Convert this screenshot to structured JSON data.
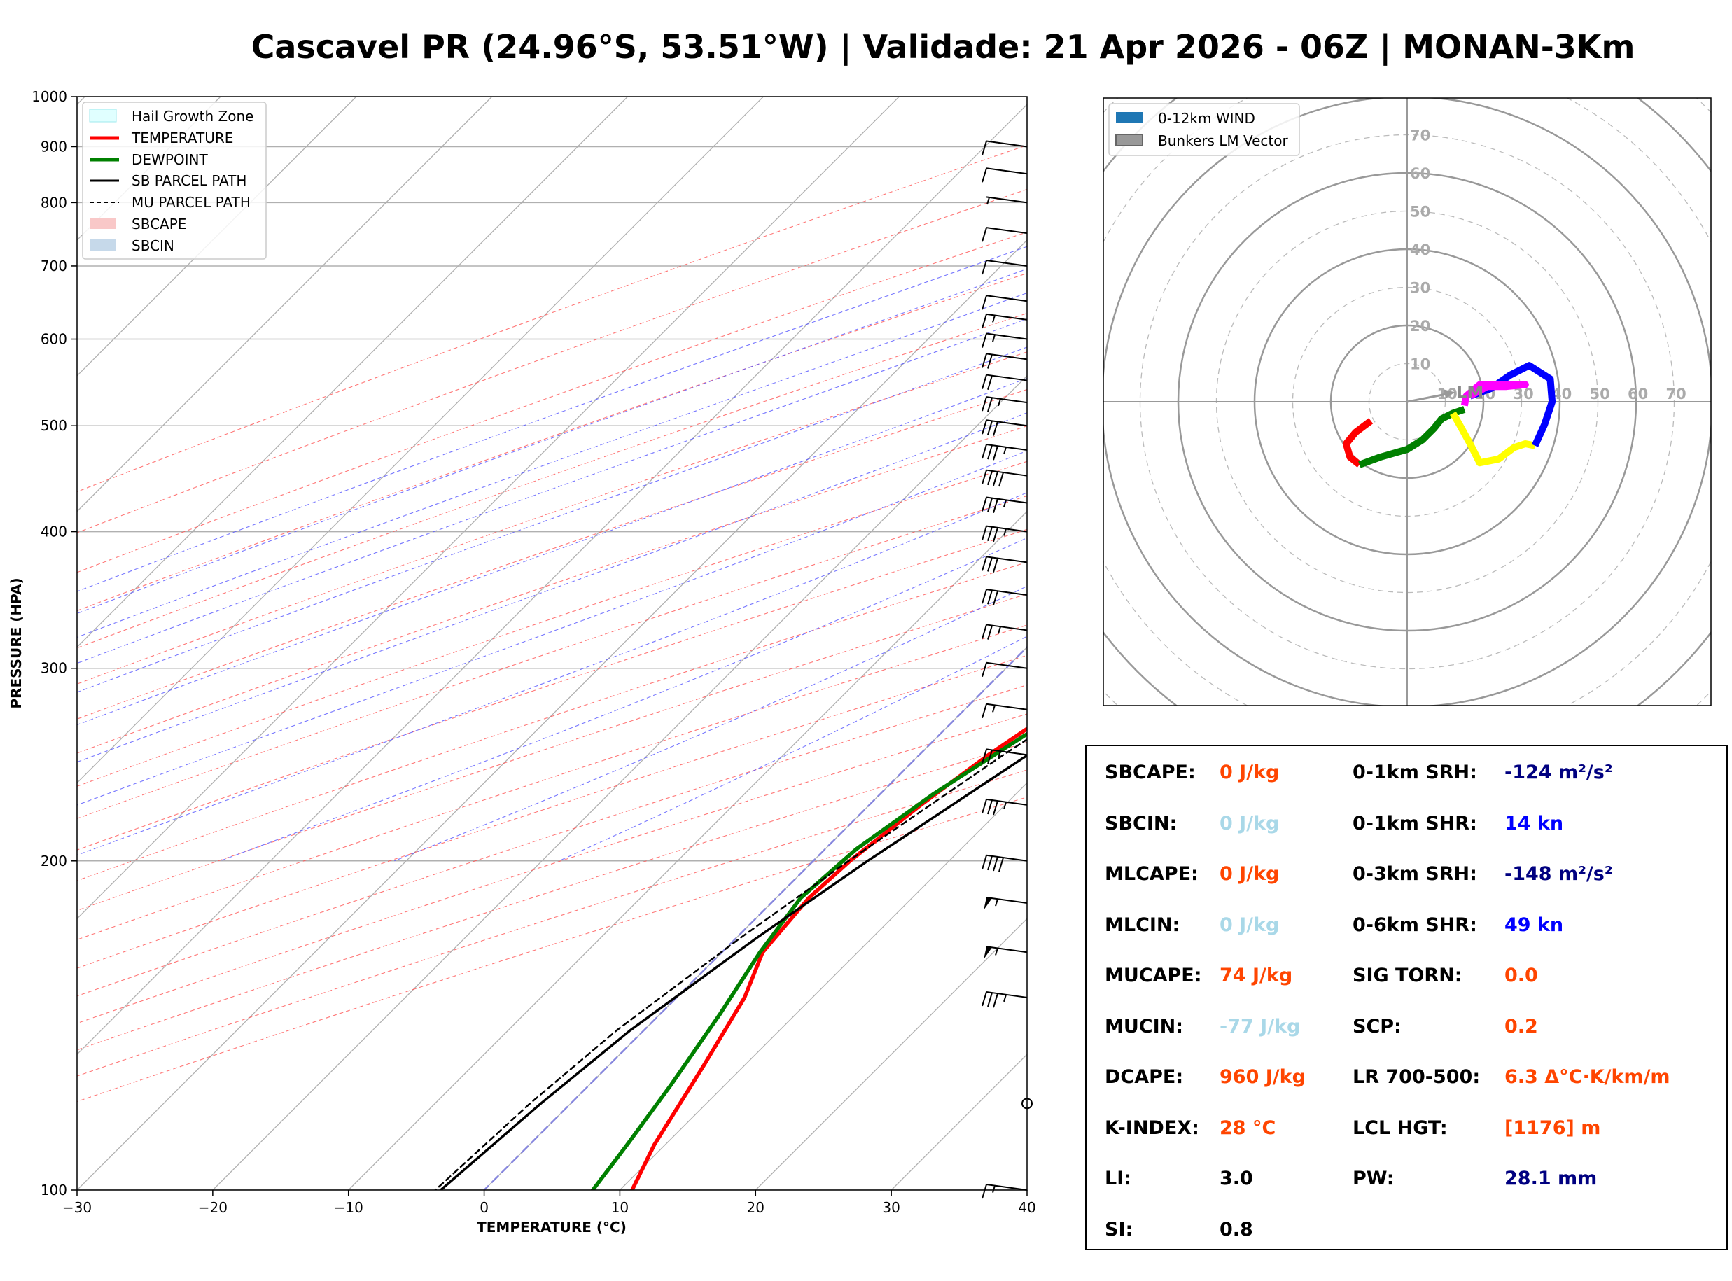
{
  "title": "Cascavel PR (24.96°S, 53.51°W) | Validade: 21 Apr 2026 - 06Z | MONAN-3Km",
  "chart_data": [
    {
      "type": "line",
      "name": "skewt",
      "xlabel": "TEMPERATURE (°C)",
      "ylabel": "PRESSURE (HPA)",
      "xlim": [
        -30,
        40
      ],
      "ylim": [
        1000,
        100
      ],
      "y_scale": "log",
      "x_ticks": [
        -30,
        -20,
        -10,
        0,
        10,
        20,
        30,
        40
      ],
      "x_tick_labels": [
        "−30",
        "−20",
        "−10",
        "0",
        "10",
        "20",
        "30",
        "40"
      ],
      "y_ticks": [
        100,
        200,
        300,
        400,
        500,
        600,
        700,
        800,
        900,
        1000
      ],
      "y_tick_labels": [
        "100",
        "200",
        "300",
        "400",
        "500",
        "600",
        "700",
        "800",
        "900",
        "1000"
      ],
      "legend_position": "top-left",
      "legend": [
        "Hail Growth Zone",
        "TEMPERATURE",
        "DEWPOINT",
        "SB PARCEL PATH",
        "MU PARCEL PATH",
        "SBCAPE",
        "SBCIN"
      ],
      "series": [
        {
          "name": "TEMPERATURE",
          "color": "#ff0000",
          "points": [
            [
              925,
              24.2
            ],
            [
              910,
              27.4
            ],
            [
              890,
              27.3
            ],
            [
              870,
              26.3
            ],
            [
              840,
              25.4
            ],
            [
              810,
              23.0
            ],
            [
              780,
              21.2
            ],
            [
              760,
              20.5
            ],
            [
              730,
              20.5
            ],
            [
              700,
              21.2
            ],
            [
              660,
              21.7
            ],
            [
              630,
              21.4
            ],
            [
              600,
              20.5
            ],
            [
              570,
              19.4
            ],
            [
              540,
              17.3
            ],
            [
              510,
              15.6
            ],
            [
              485,
              14.9
            ],
            [
              470,
              14.6
            ],
            [
              430,
              14.0
            ],
            [
              400,
              13.0
            ],
            [
              370,
              11.8
            ],
            [
              340,
              10.7
            ],
            [
              310,
              8.9
            ],
            [
              280,
              7.0
            ],
            [
              250,
              5.1
            ],
            [
              225,
              3.8
            ],
            [
              200,
              2.7
            ],
            [
              185,
              2.4
            ],
            [
              165,
              3.0
            ],
            [
              150,
              5.0
            ],
            [
              130,
              7.0
            ],
            [
              110,
              9.2
            ],
            [
              100,
              10.9
            ]
          ]
        },
        {
          "name": "DEWPOINT",
          "color": "#008000",
          "points": [
            [
              940,
              15.0
            ],
            [
              920,
              14.6
            ],
            [
              900,
              15.3
            ],
            [
              870,
              15.5
            ],
            [
              850,
              15.5
            ],
            [
              830,
              17.0
            ],
            [
              800,
              18.0
            ],
            [
              780,
              18.5
            ],
            [
              760,
              17.7
            ],
            [
              730,
              14.1
            ],
            [
              700,
              10.5
            ],
            [
              660,
              5.5
            ],
            [
              630,
              3.3
            ],
            [
              600,
              4.8
            ],
            [
              560,
              5.9
            ],
            [
              530,
              7.1
            ],
            [
              500,
              10.4
            ],
            [
              460,
              16.2
            ],
            [
              440,
              16.3
            ],
            [
              420,
              15.6
            ],
            [
              390,
              13.9
            ],
            [
              360,
              12.3
            ],
            [
              320,
              10.8
            ],
            [
              290,
              8.9
            ],
            [
              260,
              6.3
            ],
            [
              230,
              3.9
            ],
            [
              205,
              2.3
            ],
            [
              185,
              1.8
            ],
            [
              165,
              2.8
            ],
            [
              145,
              4.4
            ],
            [
              125,
              6.0
            ],
            [
              110,
              7.2
            ],
            [
              100,
              8.0
            ]
          ]
        },
        {
          "name": "SB PARCEL PATH",
          "color": "#000000",
          "points": [
            [
              925,
              24.2
            ],
            [
              880,
              22.3
            ],
            [
              840,
              20.6
            ],
            [
              810,
              19.3
            ],
            [
              790,
              19.4
            ],
            [
              750,
              19.7
            ],
            [
              700,
              19.8
            ],
            [
              650,
              19.7
            ],
            [
              600,
              19.4
            ],
            [
              550,
              18.8
            ],
            [
              500,
              18.1
            ],
            [
              450,
              17.3
            ],
            [
              400,
              15.9
            ],
            [
              350,
              13.8
            ],
            [
              300,
              11.2
            ],
            [
              250,
              8.0
            ],
            [
              200,
              4.0
            ],
            [
              170,
              1.5
            ],
            [
              140,
              -1.0
            ],
            [
              120,
              -2.2
            ],
            [
              100,
              -3.2
            ]
          ]
        },
        {
          "name": "MU PARCEL PATH",
          "color": "#000000",
          "dash": true,
          "points": [
            [
              810,
              23.0
            ],
            [
              780,
              21.2
            ],
            [
              740,
              21.5
            ],
            [
              700,
              22.0
            ],
            [
              650,
              22.0
            ],
            [
              600,
              21.6
            ],
            [
              550,
              20.8
            ],
            [
              500,
              19.6
            ],
            [
              450,
              17.9
            ],
            [
              400,
              15.8
            ],
            [
              350,
              13.0
            ],
            [
              300,
              9.6
            ],
            [
              250,
              6.2
            ],
            [
              200,
              2.6
            ],
            [
              170,
              0.3
            ],
            [
              140,
              -2.0
            ],
            [
              120,
              -3.0
            ],
            [
              100,
              -3.6
            ]
          ]
        }
      ],
      "hail_growth_zone": {
        "p_top": 465,
        "p_bottom": 565
      },
      "wind_barbs": [
        {
          "p": 100,
          "speed": 15
        },
        {
          "p": 120,
          "speed": 0
        },
        {
          "p": 150,
          "speed": 35
        },
        {
          "p": 165,
          "speed": 55
        },
        {
          "p": 183,
          "speed": 55
        },
        {
          "p": 200,
          "speed": 40
        },
        {
          "p": 225,
          "speed": 35
        },
        {
          "p": 250,
          "speed": 25
        },
        {
          "p": 275,
          "speed": 15
        },
        {
          "p": 300,
          "speed": 10
        },
        {
          "p": 325,
          "speed": 25
        },
        {
          "p": 350,
          "speed": 30
        },
        {
          "p": 375,
          "speed": 30
        },
        {
          "p": 400,
          "speed": 35
        },
        {
          "p": 425,
          "speed": 35
        },
        {
          "p": 450,
          "speed": 40
        },
        {
          "p": 475,
          "speed": 35
        },
        {
          "p": 500,
          "speed": 30
        },
        {
          "p": 525,
          "speed": 25
        },
        {
          "p": 550,
          "speed": 20
        },
        {
          "p": 575,
          "speed": 20
        },
        {
          "p": 600,
          "speed": 15
        },
        {
          "p": 625,
          "speed": 15
        },
        {
          "p": 650,
          "speed": 10
        },
        {
          "p": 700,
          "speed": 10
        },
        {
          "p": 750,
          "speed": 10
        },
        {
          "p": 800,
          "speed": 5
        },
        {
          "p": 850,
          "speed": 10
        },
        {
          "p": 900,
          "speed": 10
        }
      ]
    },
    {
      "type": "line",
      "name": "hodograph",
      "ring_labels": [
        "10",
        "20",
        "30",
        "40",
        "50",
        "60",
        "70"
      ],
      "legend_position": "top-left",
      "legend": [
        "0-12km WIND",
        "Bunkers LM Vector"
      ],
      "lm_label": "LM",
      "bunkers_lm": [
        12.5,
        2.5
      ],
      "segments": [
        {
          "color": "#ff0000",
          "points": [
            [
              -9.5,
              -5
            ],
            [
              -13.5,
              -8
            ],
            [
              -16,
              -11
            ],
            [
              -15,
              -14.5
            ],
            [
              -12.5,
              -16.5
            ]
          ]
        },
        {
          "color": "#008000",
          "points": [
            [
              -12.5,
              -16.5
            ],
            [
              -7,
              -14.5
            ],
            [
              0,
              -12.5
            ],
            [
              4,
              -10
            ],
            [
              7,
              -7
            ],
            [
              9,
              -4.5
            ],
            [
              12,
              -3
            ],
            [
              15,
              -2
            ]
          ]
        },
        {
          "color": "#ffff00",
          "points": [
            [
              12,
              -3
            ],
            [
              14,
              -6.5
            ],
            [
              16.5,
              -11
            ],
            [
              19,
              -16
            ],
            [
              24,
              -15
            ],
            [
              28,
              -12
            ],
            [
              31,
              -11
            ],
            [
              33.5,
              -11.5
            ]
          ]
        },
        {
          "color": "#0000ff",
          "points": [
            [
              33.5,
              -11.5
            ],
            [
              36,
              -6
            ],
            [
              38,
              0
            ],
            [
              37.5,
              6
            ],
            [
              32,
              9.5
            ],
            [
              27,
              7
            ],
            [
              22,
              3.5
            ],
            [
              16.5,
              1.5
            ]
          ]
        },
        {
          "color": "#ff00ff",
          "points": [
            [
              16.5,
              1.5
            ],
            [
              21,
              4
            ],
            [
              26,
              4
            ],
            [
              31,
              4.5
            ],
            [
              29,
              4.5
            ],
            [
              19,
              4.5
            ],
            [
              15.5,
              1.5
            ],
            [
              15,
              -1
            ]
          ]
        }
      ]
    }
  ],
  "indices": {
    "left": [
      {
        "label": "SBCAPE:",
        "value": "0 J/kg",
        "color": "#ff4500"
      },
      {
        "label": "SBCIN:",
        "value": "0 J/kg",
        "color": "#a9d8e8"
      },
      {
        "label": "MLCAPE:",
        "value": "0 J/kg",
        "color": "#ff4500"
      },
      {
        "label": "MLCIN:",
        "value": "0 J/kg",
        "color": "#a9d8e8"
      },
      {
        "label": "MUCAPE:",
        "value": "74 J/kg",
        "color": "#ff4500"
      },
      {
        "label": "MUCIN:",
        "value": "-77 J/kg",
        "color": "#a9d8e8"
      },
      {
        "label": "DCAPE:",
        "value": "960 J/kg",
        "color": "#ff4500"
      },
      {
        "label": "K-INDEX:",
        "value": "28 °C",
        "color": "#ff4500"
      },
      {
        "label": "LI:",
        "value": "3.0",
        "color": "#000000"
      },
      {
        "label": "SI:",
        "value": "0.8",
        "color": "#000000"
      }
    ],
    "right": [
      {
        "label": "0-1km SRH:",
        "value": "-124 m²/s²",
        "color": "#000080"
      },
      {
        "label": "0-1km SHR:",
        "value": "14 kn",
        "color": "#0000ff"
      },
      {
        "label": "0-3km SRH:",
        "value": "-148 m²/s²",
        "color": "#000080"
      },
      {
        "label": "0-6km SHR:",
        "value": "49 kn",
        "color": "#0000ff"
      },
      {
        "label": "SIG TORN:",
        "value": "0.0",
        "color": "#ff4500"
      },
      {
        "label": "SCP:",
        "value": "0.2",
        "color": "#ff4500"
      },
      {
        "label": "LR 700-500:",
        "value": "6.3 Δ°C·K/km/m",
        "color": "#ff4500"
      },
      {
        "label": "LCL HGT:",
        "value": "[1176] m",
        "color": "#ff4500"
      },
      {
        "label": "PW:",
        "value": "28.1 mm",
        "color": "#000080"
      }
    ]
  }
}
